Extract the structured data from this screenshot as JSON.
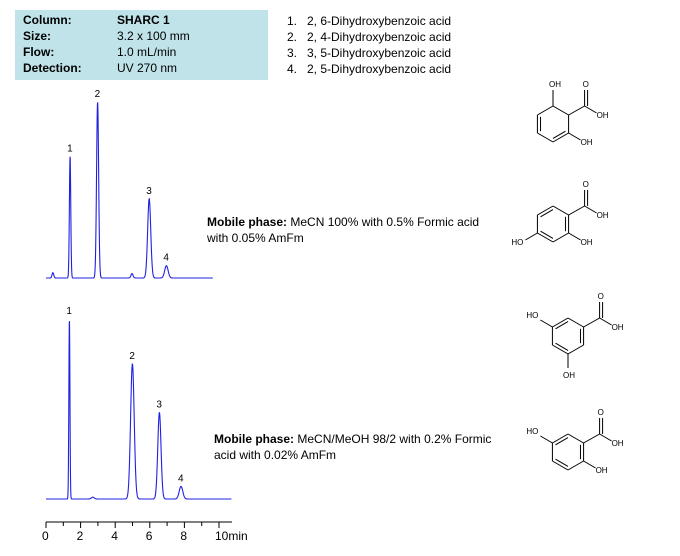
{
  "info": {
    "column_label": "Column:",
    "column_value": "SHARC 1",
    "size_label": "Size:",
    "size_value": "3.2 x 100 mm",
    "flow_label": "Flow:",
    "flow_value": "1.0 mL/min",
    "detection_label": "Detection:",
    "detection_value": "UV 270 nm"
  },
  "compounds": [
    {
      "num": "1.",
      "name": "2, 6-Dihydroxybenzoic acid"
    },
    {
      "num": "2.",
      "name": "2, 4-Dihydroxybenzoic acid"
    },
    {
      "num": "3.",
      "name": "3, 5-Dihydroxybenzoic acid"
    },
    {
      "num": "4.",
      "name": "2, 5-Dihydroxybenzoic acid"
    }
  ],
  "mobile_phase_1": {
    "label": "Mobile phase:",
    "text": "MeCN 100% with 0.5% Formic acid with 0.05% AmFm"
  },
  "mobile_phase_2": {
    "label": "Mobile phase:",
    "text": "MeCN/MeOH 98/2 with 0.2% Formic acid with 0.02% AmFm"
  },
  "structure_labels": {
    "s1": [
      "OH",
      "OH",
      "O",
      "OH"
    ],
    "s2": [
      "HO",
      "OH",
      "O",
      "OH"
    ],
    "s3": [
      "HO",
      "OH",
      "O",
      "OH"
    ],
    "s4": [
      "HO",
      "OH",
      "O",
      "OH"
    ]
  },
  "colors": {
    "trace": "#2020e0",
    "info_bg": "#bfe3e8"
  },
  "chart_data": [
    {
      "type": "line",
      "title": "",
      "xlabel": "min",
      "ylabel": "",
      "xlim": [
        0,
        10
      ],
      "peaks": [
        {
          "label": "1",
          "time": 1.4,
          "height": 0.69,
          "width": 0.04
        },
        {
          "label": "2",
          "time": 3.0,
          "height": 1.0,
          "width": 0.06
        },
        {
          "label": "3",
          "time": 6.0,
          "height": 0.45,
          "width": 0.09
        },
        {
          "label": "4",
          "time": 7.0,
          "height": 0.07,
          "width": 0.1
        }
      ],
      "minor_peaks": [
        {
          "time": 0.4,
          "height": 0.03,
          "width": 0.05
        },
        {
          "time": 5.0,
          "height": 0.025,
          "width": 0.06
        }
      ]
    },
    {
      "type": "line",
      "title": "",
      "xlabel": "min",
      "ylabel": "",
      "xlim": [
        0,
        10
      ],
      "x_ticks": [
        "0",
        "2",
        "4",
        "6",
        "8",
        "10min"
      ],
      "peaks": [
        {
          "label": "1",
          "time": 1.3,
          "height": 1.0,
          "width": 0.03
        },
        {
          "label": "2",
          "time": 4.8,
          "height": 0.75,
          "width": 0.1
        },
        {
          "label": "3",
          "time": 6.3,
          "height": 0.48,
          "width": 0.09
        },
        {
          "label": "4",
          "time": 7.5,
          "height": 0.07,
          "width": 0.1
        }
      ],
      "minor_peaks": [
        {
          "time": 2.6,
          "height": 0.01,
          "width": 0.08
        }
      ]
    }
  ]
}
